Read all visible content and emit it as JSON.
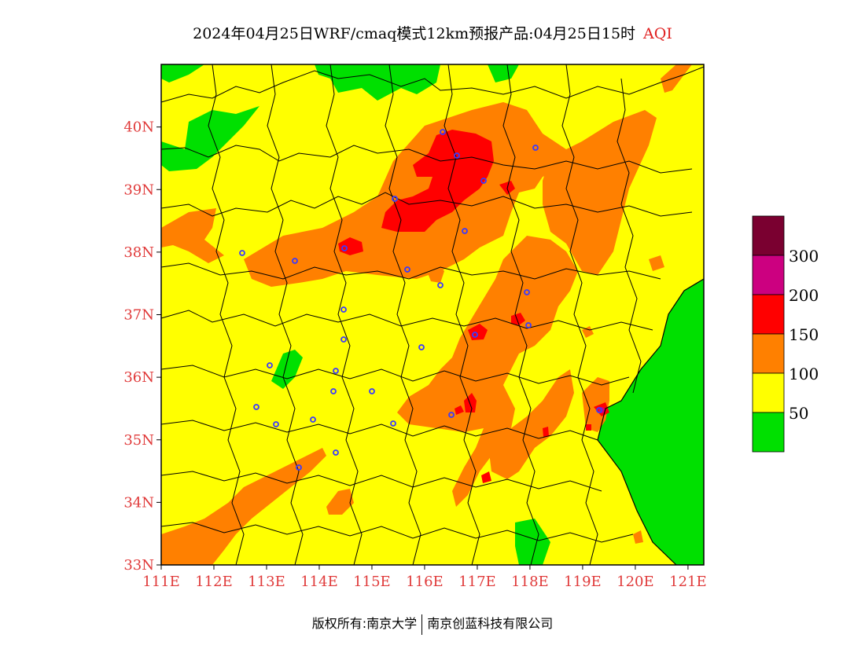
{
  "header": {
    "title": "2024年04月25日WRF/cmaq模式12km预报产品:04月25日15时",
    "tag": "AQI"
  },
  "map": {
    "lat_labels": [
      "33N",
      "34N",
      "35N",
      "36N",
      "37N",
      "38N",
      "39N",
      "40N"
    ],
    "lon_labels": [
      "111E",
      "112E",
      "113E",
      "114E",
      "115E",
      "116E",
      "117E",
      "118E",
      "119E",
      "120E",
      "121E"
    ],
    "extent": {
      "lon_min": 111,
      "lon_max": 121.3,
      "lat_min": 33,
      "lat_max": 41
    },
    "label_color": "#e03a3a"
  },
  "legend": {
    "items": [
      {
        "label": "",
        "color": "#7a0030"
      },
      {
        "label": "300",
        "color": "#cc0080"
      },
      {
        "label": "200",
        "color": "#ff0000"
      },
      {
        "label": "150",
        "color": "#ff8000"
      },
      {
        "label": "100",
        "color": "#ffff00"
      },
      {
        "label": "50",
        "color": "#00e000"
      }
    ]
  },
  "footer": {
    "copyright": "版权所有:南京大学",
    "company": "南京创蓝科技有限公司"
  }
}
